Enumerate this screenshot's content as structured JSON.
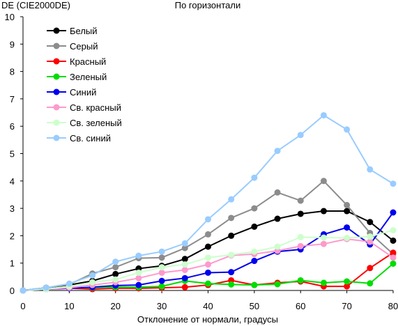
{
  "chart_data": {
    "type": "line",
    "title": "По горизонтали",
    "ylabel": "DE (CIE2000DE)",
    "xlabel": "Отклонение от нормали, градусы",
    "xlim": [
      0,
      80
    ],
    "ylim": [
      0,
      10
    ],
    "x_ticks": [
      0,
      10,
      20,
      30,
      40,
      50,
      60,
      70,
      80
    ],
    "y_ticks": [
      0,
      1,
      2,
      3,
      4,
      5,
      6,
      7,
      8,
      9,
      10
    ],
    "grid": false,
    "legend_position": "top-left",
    "x": [
      0,
      5,
      10,
      15,
      20,
      25,
      30,
      35,
      40,
      45,
      50,
      55,
      60,
      65,
      70,
      75,
      80
    ],
    "series": [
      {
        "name": "Белый",
        "color": "#000000",
        "values": [
          0,
          0.1,
          0.2,
          0.35,
          0.6,
          0.8,
          0.9,
          1.15,
          1.6,
          2.0,
          2.33,
          2.62,
          2.8,
          2.9,
          2.9,
          2.5,
          1.82
        ]
      },
      {
        "name": "Серый",
        "color": "#8c8c8c",
        "values": [
          0,
          0.1,
          0.22,
          0.62,
          0.85,
          1.18,
          1.2,
          1.55,
          2.05,
          2.65,
          3.0,
          3.58,
          3.28,
          4.0,
          3.12,
          2.1,
          1.33
        ]
      },
      {
        "name": "Красный",
        "color": "#ff0000",
        "values": [
          0,
          0.05,
          0.08,
          0.05,
          0.08,
          0.08,
          0.1,
          0.12,
          0.2,
          0.37,
          0.2,
          0.28,
          0.33,
          0.15,
          0.15,
          0.82,
          1.38
        ]
      },
      {
        "name": "Зеленый",
        "color": "#00dd00",
        "values": [
          0,
          0.05,
          0.1,
          0.1,
          0.12,
          0.12,
          0.15,
          0.35,
          0.25,
          0.22,
          0.2,
          0.23,
          0.37,
          0.28,
          0.33,
          0.26,
          0.98
        ]
      },
      {
        "name": "Синий",
        "color": "#0000ee",
        "values": [
          0,
          0.05,
          0.08,
          0.12,
          0.18,
          0.2,
          0.35,
          0.45,
          0.65,
          0.67,
          1.08,
          1.42,
          1.5,
          2.05,
          2.3,
          1.68,
          2.85
        ]
      },
      {
        "name": "Св. красный",
        "color": "#ff99cc",
        "values": [
          0,
          0.05,
          0.1,
          0.2,
          0.3,
          0.45,
          0.65,
          0.75,
          0.95,
          1.28,
          1.33,
          1.45,
          1.62,
          1.7,
          1.88,
          1.78,
          1.2
        ]
      },
      {
        "name": "Св. зеленый",
        "color": "#ccffcc",
        "values": [
          0,
          0.05,
          0.15,
          0.3,
          0.4,
          0.65,
          0.85,
          0.95,
          1.2,
          1.3,
          1.42,
          1.6,
          1.95,
          1.93,
          1.92,
          1.97,
          2.2
        ]
      },
      {
        "name": "Св. синий",
        "color": "#99ccff",
        "values": [
          0,
          0.1,
          0.25,
          0.55,
          1.05,
          1.27,
          1.42,
          1.72,
          2.6,
          3.33,
          4.12,
          5.1,
          5.68,
          6.4,
          5.88,
          4.42,
          3.9
        ]
      }
    ]
  }
}
